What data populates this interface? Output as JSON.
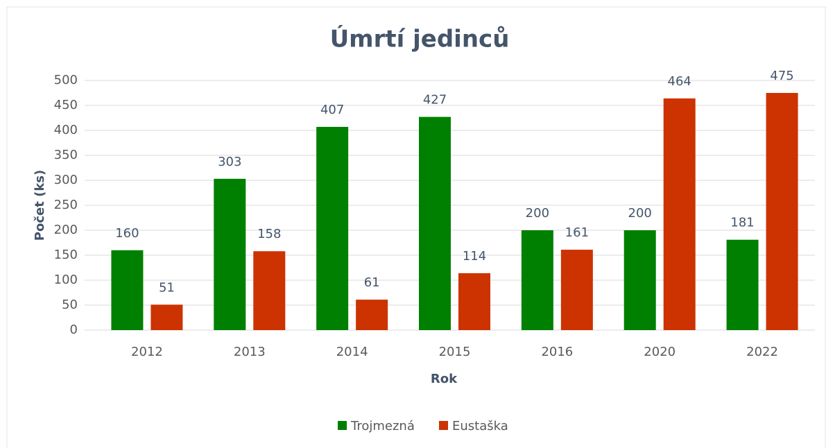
{
  "chart_data": {
    "type": "bar",
    "title": "Úmrtí jedinců",
    "x_label": "Rok",
    "y_label": "Počet (ks)",
    "categories": [
      "2012",
      "2013",
      "2014",
      "2015",
      "2016",
      "2020",
      "2022"
    ],
    "series": [
      {
        "name": "Trojmezná",
        "color": "#008000",
        "values": [
          160,
          303,
          407,
          427,
          200,
          200,
          181
        ]
      },
      {
        "name": "Eustaška",
        "color": "#cc3300",
        "values": [
          51,
          158,
          61,
          114,
          161,
          464,
          475
        ]
      }
    ],
    "ylim": [
      0,
      500
    ],
    "yticks": [
      0,
      50,
      100,
      150,
      200,
      250,
      300,
      350,
      400,
      450,
      500
    ],
    "grid": true,
    "legend": "bottom",
    "data_labels": true
  }
}
